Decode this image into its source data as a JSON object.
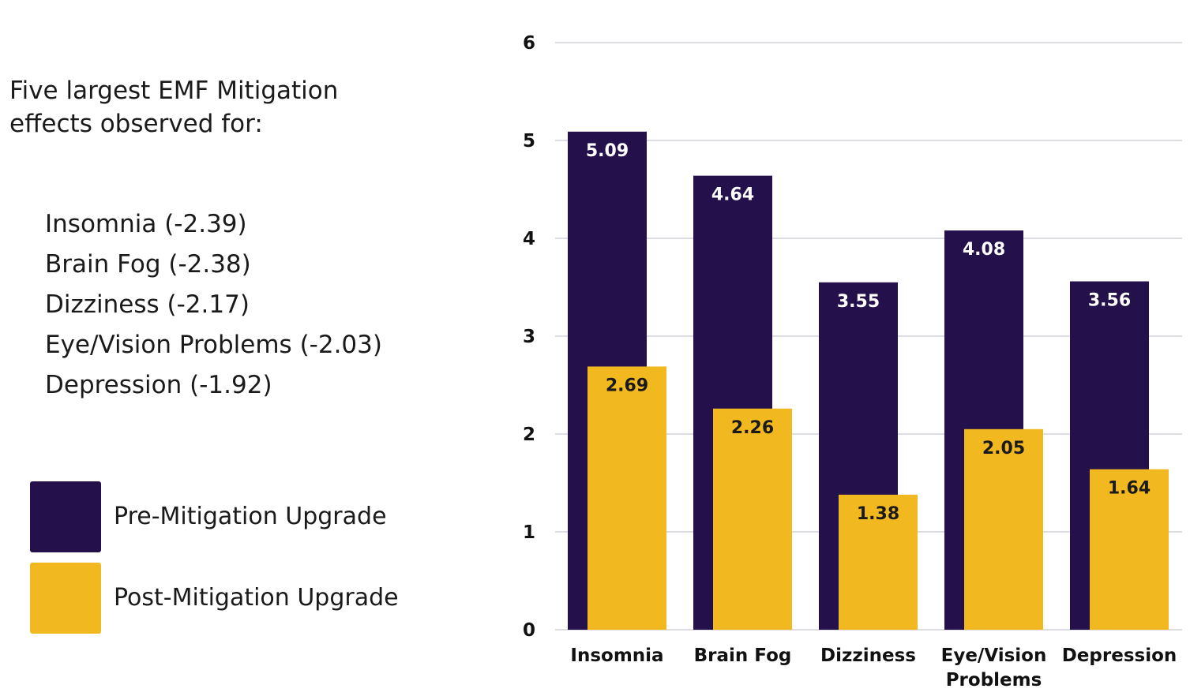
{
  "summary": {
    "heading_lines": [
      "Five largest EMF Mitigation",
      "effects observed for:"
    ],
    "effects": [
      "Insomnia (-2.39)",
      "Brain Fog (-2.38)",
      "Dizziness (-2.17)",
      "Eye/Vision Problems (-2.03)",
      "Depression (-1.92)"
    ]
  },
  "colors": {
    "pre": "#24104a",
    "post": "#f2b81f",
    "grid": "#d0d0d8",
    "pre_label": "#ffffff",
    "post_label": "#1a1a1a"
  },
  "chart_data": {
    "type": "bar",
    "categories": [
      [
        "Insomnia"
      ],
      [
        "Brain Fog"
      ],
      [
        "Dizziness"
      ],
      [
        "Eye/Vision",
        "Problems"
      ],
      [
        "Depression"
      ]
    ],
    "series": [
      {
        "name": "Pre-Mitigation Upgrade",
        "values": [
          5.09,
          4.64,
          3.55,
          4.08,
          3.56
        ]
      },
      {
        "name": "Post-Mitigation Upgrade",
        "values": [
          2.69,
          2.26,
          1.38,
          2.05,
          1.64
        ]
      }
    ],
    "value_labels": [
      [
        "5.09",
        "4.64",
        "3.55",
        "4.08",
        "3.56"
      ],
      [
        "2.69",
        "2.26",
        "1.38",
        "2.05",
        "1.64"
      ]
    ],
    "yticks": [
      "0",
      "1",
      "2",
      "3",
      "4",
      "5",
      "6"
    ],
    "ylim": [
      0,
      6
    ],
    "grid": true,
    "legend_position": "left",
    "title": "",
    "xlabel": "",
    "ylabel": ""
  }
}
